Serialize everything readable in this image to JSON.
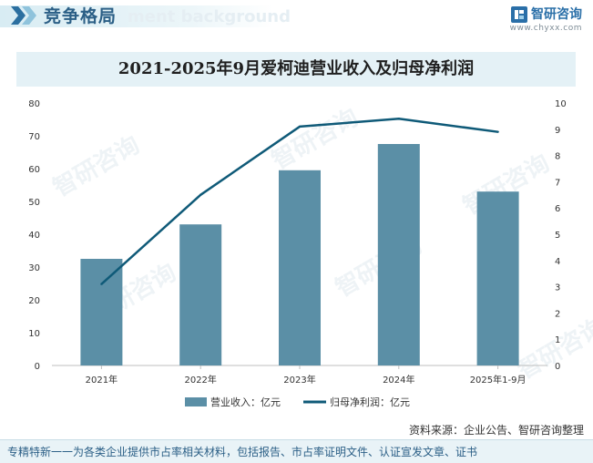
{
  "header": {
    "section_title": "竞争格局",
    "watermark_text": "ment background",
    "brand_name": "智研咨询",
    "brand_url": "www.chyxx.com"
  },
  "chart_data": {
    "type": "bar+line",
    "title": "2021-2025年9月爱柯迪营业收入及归母净利润",
    "categories": [
      "2021年",
      "2022年",
      "2023年",
      "2024年",
      "2025年1-9月"
    ],
    "series": [
      {
        "name": "营业收入：亿元",
        "type": "bar",
        "axis": "left",
        "color": "#5b8fa6",
        "values": [
          32.5,
          43.0,
          59.5,
          67.5,
          53.0
        ]
      },
      {
        "name": "归母净利润：亿元",
        "type": "line",
        "axis": "right",
        "color": "#0f5a78",
        "values": [
          3.1,
          6.5,
          9.1,
          9.4,
          8.9
        ]
      }
    ],
    "left_axis": {
      "ylim": [
        0,
        80
      ],
      "ticks": [
        "0",
        "10",
        "20",
        "30",
        "40",
        "50",
        "60",
        "70",
        "80"
      ]
    },
    "right_axis": {
      "ylim": [
        0,
        10
      ],
      "ticks": [
        "0",
        "1",
        "2",
        "3",
        "4",
        "5",
        "6",
        "7",
        "8",
        "9",
        "10"
      ]
    },
    "legend_position": "bottom-center",
    "grid": false
  },
  "source_text": "资料来源：企业公告、智研咨询整理",
  "footer_text": "专精特新一一为各类企业提供市占率相关材料，包括报告、市占率证明文件、认证宣发文章、证书",
  "colors": {
    "bar": "#5b8fa6",
    "line": "#0f5a78",
    "header_title": "#2b5f86"
  }
}
